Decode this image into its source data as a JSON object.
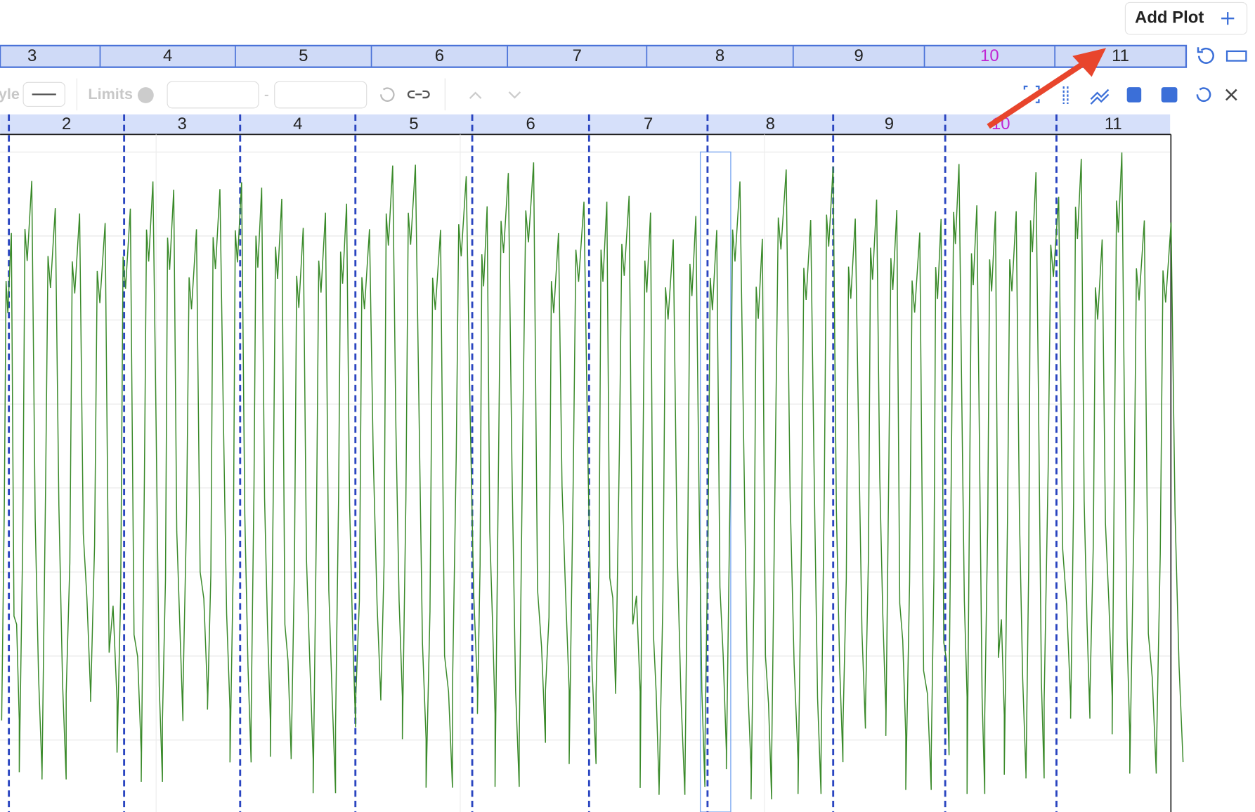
{
  "add_plot": {
    "label": "Add Plot"
  },
  "lap_bar": {
    "laps": [
      {
        "label": "3"
      },
      {
        "label": "4"
      },
      {
        "label": "5"
      },
      {
        "label": "6"
      },
      {
        "label": "7"
      },
      {
        "label": "8"
      },
      {
        "label": "9"
      },
      {
        "label": "10",
        "color": "#c026d3"
      },
      {
        "label": "11"
      }
    ]
  },
  "toolbar": {
    "style_label": "yle",
    "limits_label": "Limits",
    "range_separator": "-"
  },
  "plot": {
    "laps": [
      {
        "label": "2"
      },
      {
        "label": "3"
      },
      {
        "label": "4"
      },
      {
        "label": "5"
      },
      {
        "label": "6"
      },
      {
        "label": "7"
      },
      {
        "label": "8"
      },
      {
        "label": "9"
      },
      {
        "label": "10",
        "color": "#c026d3"
      },
      {
        "label": "11"
      }
    ]
  }
}
